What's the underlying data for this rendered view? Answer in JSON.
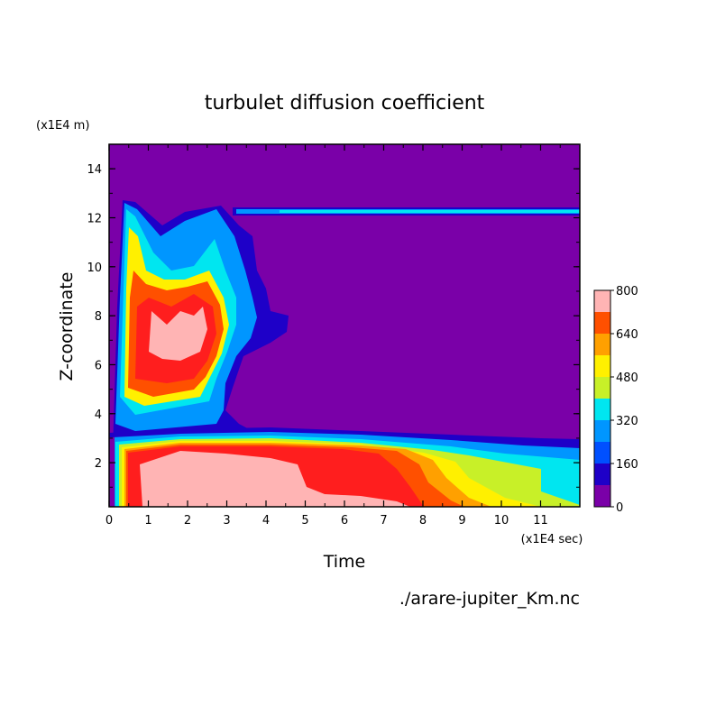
{
  "chart_data": {
    "type": "heatmap",
    "title": "turbulet diffusion coefficient",
    "xlabel": "Time",
    "ylabel": "Z-coordinate",
    "x_unit_label": "(x1E4 sec)",
    "y_unit_label": "(x1E4 m)",
    "source_label": "./arare-jupiter_Km.nc",
    "xlim": [
      0,
      12
    ],
    "ylim": [
      0.2,
      15
    ],
    "x_ticks": [
      "0",
      "1",
      "2",
      "3",
      "4",
      "5",
      "6",
      "7",
      "8",
      "9",
      "10",
      "11"
    ],
    "y_ticks": [
      "2",
      "4",
      "6",
      "8",
      "10",
      "12",
      "14"
    ],
    "colorbar": {
      "levels": [
        0,
        80,
        160,
        240,
        320,
        400,
        480,
        560,
        640,
        720,
        800
      ],
      "tick_labels": [
        "0",
        "160",
        "320",
        "480",
        "640",
        "800"
      ],
      "colors": [
        "#7a00a8",
        "#1e00c8",
        "#0050ff",
        "#0096ff",
        "#00e6f0",
        "#c8f028",
        "#fff000",
        "#ffa000",
        "#ff5000",
        "#ff1e1e",
        "#ffb4b4"
      ]
    },
    "regions": [
      {
        "desc": "lower mixed layer",
        "x": [
          0.3,
          12
        ],
        "y": [
          0.2,
          3
        ],
        "value": 800
      },
      {
        "desc": "upper burst",
        "x": [
          0.4,
          3.2
        ],
        "y": [
          3,
          12.5
        ],
        "value": 640
      },
      {
        "desc": "thin band near z=12.2",
        "x": [
          3.2,
          12
        ],
        "y": [
          12.1,
          12.3
        ],
        "value": 240
      }
    ]
  }
}
